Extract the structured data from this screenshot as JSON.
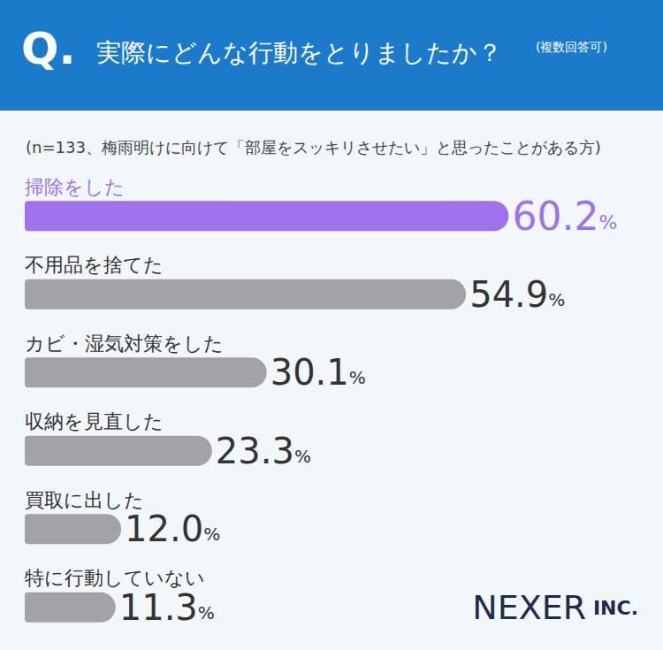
{
  "chart_data": {
    "type": "bar",
    "title": "実際にどんな行動をとりましたか？",
    "subtitle": "(n=133、梅雨明けに向けて「部屋をスッキリさせたい」と思ったことがある方)",
    "annotations": [
      "Q.",
      "(複数回答可)",
      "NEXER INC."
    ],
    "orientation": "horizontal",
    "categories": [
      "掃除をした",
      "不用品を捨てた",
      "カビ・湿気対策をした",
      "収納を見直した",
      "買取に出した",
      "特に行動していない"
    ],
    "values": [
      60.2,
      54.9,
      30.1,
      23.3,
      12.0,
      11.3
    ],
    "value_labels": [
      "60.2%",
      "54.9%",
      "30.1%",
      "23.3%",
      "12.0%",
      "11.3%"
    ],
    "colors": [
      "#9e72ea",
      "#a2a2a8",
      "#a2a2a8",
      "#a2a2a8",
      "#a2a2a8",
      "#a2a2a8"
    ],
    "xlim": [
      0,
      75
    ],
    "xticks": [
      0,
      75
    ],
    "grid": false,
    "data_labels": true,
    "tick_labels": "y"
  }
}
